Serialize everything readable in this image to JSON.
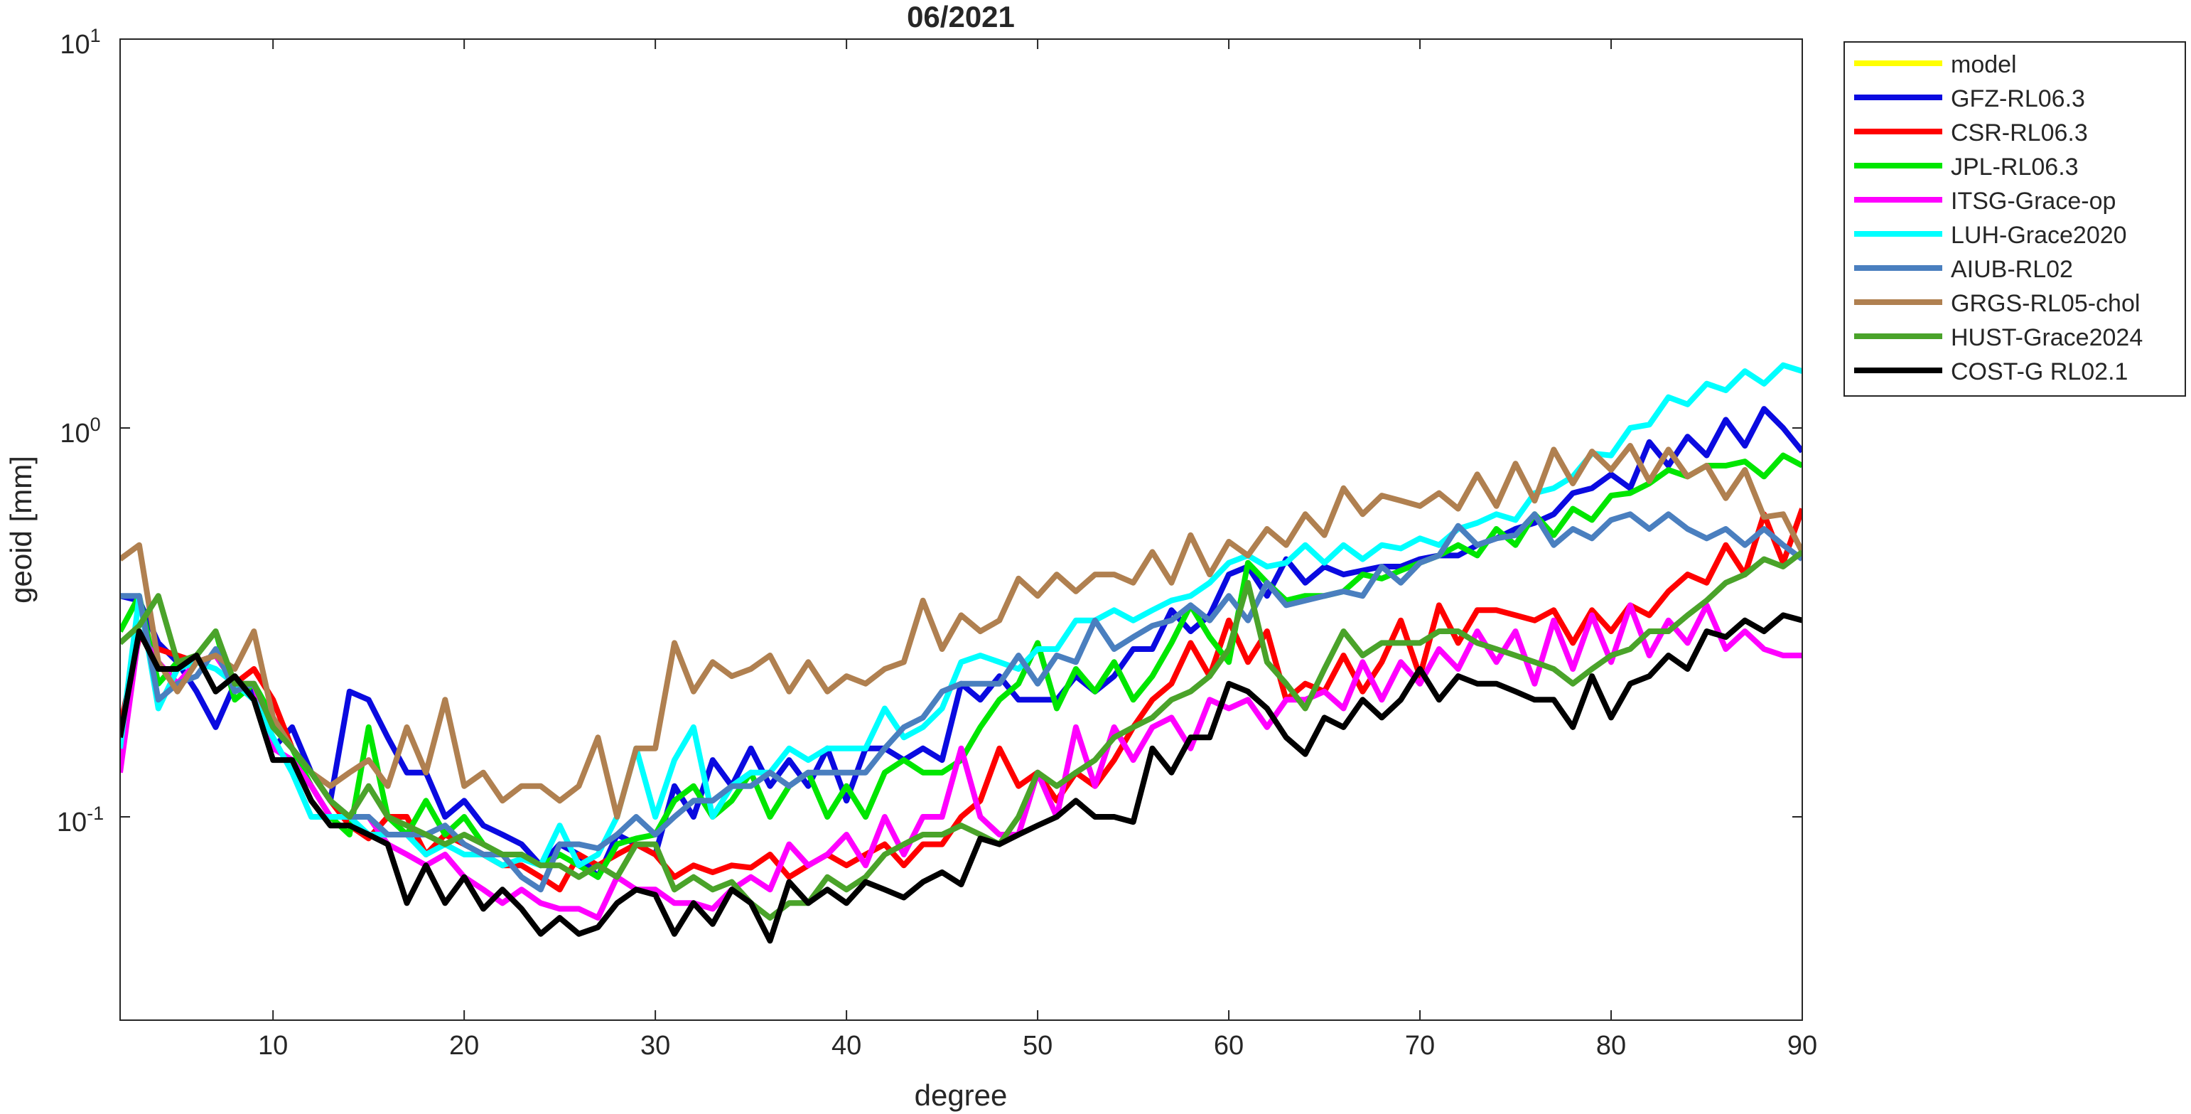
{
  "chart_data": {
    "type": "line",
    "title": "06/2021",
    "xlabel": "degree",
    "ylabel": "geoid [mm]",
    "log_y": true,
    "legend_position": "northeastoutside",
    "xlim": [
      2,
      90
    ],
    "xticks": [
      10,
      20,
      30,
      40,
      50,
      60,
      70,
      80,
      90
    ],
    "ylim": [
      0.03,
      10
    ],
    "yticks": [
      {
        "value": 0.1,
        "label": "10^{-1}"
      },
      {
        "value": 1,
        "label": "10^{0}"
      },
      {
        "value": 10,
        "label": "10^{1}"
      }
    ],
    "x": [
      2,
      3,
      4,
      5,
      6,
      7,
      8,
      9,
      10,
      11,
      12,
      13,
      14,
      15,
      16,
      17,
      18,
      19,
      20,
      21,
      22,
      23,
      24,
      25,
      26,
      27,
      28,
      29,
      30,
      31,
      32,
      33,
      34,
      35,
      36,
      37,
      38,
      39,
      40,
      41,
      42,
      43,
      44,
      45,
      46,
      47,
      48,
      49,
      50,
      51,
      52,
      53,
      54,
      55,
      56,
      57,
      58,
      59,
      60,
      61,
      62,
      63,
      64,
      65,
      66,
      67,
      68,
      69,
      70,
      71,
      72,
      73,
      74,
      75,
      76,
      77,
      78,
      79,
      80,
      81,
      82,
      83,
      84,
      85,
      86,
      87,
      88,
      89,
      90
    ],
    "series": [
      {
        "name": "model",
        "color": "#ffff00",
        "values": [
          null,
          null,
          null,
          null,
          null,
          null,
          null,
          null,
          null,
          null,
          null,
          null,
          null,
          null,
          null,
          null,
          null,
          null,
          null,
          null,
          null,
          null,
          null,
          null,
          null,
          null,
          null,
          null,
          null,
          null,
          null,
          null,
          null,
          null,
          null,
          null,
          null,
          null,
          null,
          null,
          null,
          null,
          null,
          null,
          null,
          null,
          null,
          null,
          null,
          null,
          null,
          null,
          null,
          null,
          null,
          null,
          null,
          null,
          null,
          null,
          null,
          null,
          null,
          null,
          null,
          null,
          null,
          null,
          null,
          null,
          null,
          null,
          null,
          null,
          null,
          null,
          null,
          null,
          null,
          null,
          null,
          null,
          null,
          null,
          null,
          null,
          null,
          null,
          null
        ]
      },
      {
        "name": "GFZ-RL06.3",
        "color": "#0a0ae0",
        "values": [
          0.37,
          0.36,
          0.28,
          0.25,
          0.21,
          0.17,
          0.22,
          0.21,
          0.15,
          0.17,
          0.13,
          0.11,
          0.21,
          0.2,
          0.16,
          0.13,
          0.13,
          0.1,
          0.11,
          0.095,
          0.09,
          0.085,
          0.075,
          0.085,
          0.08,
          0.07,
          0.09,
          0.085,
          0.08,
          0.12,
          0.1,
          0.14,
          0.12,
          0.15,
          0.12,
          0.14,
          0.12,
          0.15,
          0.11,
          0.15,
          0.15,
          0.14,
          0.15,
          0.14,
          0.22,
          0.2,
          0.23,
          0.2,
          0.2,
          0.2,
          0.23,
          0.21,
          0.23,
          0.27,
          0.27,
          0.34,
          0.3,
          0.33,
          0.42,
          0.44,
          0.37,
          0.46,
          0.4,
          0.44,
          0.42,
          0.43,
          0.44,
          0.44,
          0.46,
          0.47,
          0.47,
          0.5,
          0.52,
          0.55,
          0.57,
          0.6,
          0.68,
          0.7,
          0.76,
          0.7,
          0.92,
          0.8,
          0.95,
          0.85,
          1.05,
          0.9,
          1.12,
          1.0,
          0.87
        ]
      },
      {
        "name": "CSR-RL06.3",
        "color": "#ff0000",
        "values": [
          0.17,
          0.29,
          0.27,
          0.26,
          0.25,
          0.26,
          0.22,
          0.24,
          0.2,
          0.15,
          0.13,
          0.11,
          0.095,
          0.088,
          0.1,
          0.1,
          0.08,
          0.09,
          0.085,
          0.08,
          0.075,
          0.075,
          0.07,
          0.065,
          0.08,
          0.075,
          0.08,
          0.085,
          0.08,
          0.07,
          0.075,
          0.072,
          0.075,
          0.074,
          0.08,
          0.07,
          0.075,
          0.08,
          0.075,
          0.08,
          0.085,
          0.075,
          0.085,
          0.085,
          0.1,
          0.11,
          0.15,
          0.12,
          0.13,
          0.11,
          0.13,
          0.12,
          0.14,
          0.17,
          0.2,
          0.22,
          0.28,
          0.23,
          0.32,
          0.25,
          0.3,
          0.2,
          0.22,
          0.21,
          0.26,
          0.21,
          0.25,
          0.32,
          0.23,
          0.35,
          0.28,
          0.34,
          0.34,
          0.33,
          0.32,
          0.34,
          0.28,
          0.34,
          0.3,
          0.35,
          0.33,
          0.38,
          0.42,
          0.4,
          0.5,
          0.42,
          0.6,
          0.45,
          0.62
        ]
      },
      {
        "name": "JPL-RL06.3",
        "color": "#00e600",
        "values": [
          0.3,
          0.37,
          0.22,
          0.25,
          0.26,
          0.3,
          0.2,
          0.22,
          0.18,
          0.15,
          0.12,
          0.1,
          0.09,
          0.17,
          0.1,
          0.09,
          0.11,
          0.09,
          0.1,
          0.085,
          0.08,
          0.08,
          0.075,
          0.08,
          0.075,
          0.07,
          0.085,
          0.088,
          0.09,
          0.11,
          0.12,
          0.1,
          0.11,
          0.13,
          0.1,
          0.12,
          0.13,
          0.1,
          0.12,
          0.1,
          0.13,
          0.14,
          0.13,
          0.13,
          0.14,
          0.17,
          0.2,
          0.22,
          0.28,
          0.19,
          0.24,
          0.21,
          0.25,
          0.2,
          0.23,
          0.28,
          0.35,
          0.29,
          0.25,
          0.45,
          0.4,
          0.36,
          0.37,
          0.37,
          0.38,
          0.42,
          0.41,
          0.43,
          0.45,
          0.47,
          0.5,
          0.47,
          0.55,
          0.5,
          0.6,
          0.53,
          0.62,
          0.58,
          0.67,
          0.68,
          0.72,
          0.78,
          0.75,
          0.8,
          0.8,
          0.82,
          0.75,
          0.85,
          0.8
        ]
      },
      {
        "name": "ITSG-Grace-op",
        "color": "#ff00ff",
        "values": [
          0.13,
          0.3,
          0.25,
          0.22,
          0.25,
          0.26,
          0.22,
          0.22,
          0.15,
          0.14,
          0.12,
          0.1,
          0.1,
          0.1,
          0.085,
          0.08,
          0.075,
          0.08,
          0.07,
          0.065,
          0.06,
          0.065,
          0.06,
          0.058,
          0.058,
          0.055,
          0.07,
          0.065,
          0.065,
          0.06,
          0.06,
          0.058,
          0.065,
          0.07,
          0.065,
          0.085,
          0.075,
          0.08,
          0.09,
          0.075,
          0.1,
          0.08,
          0.1,
          0.1,
          0.15,
          0.1,
          0.09,
          0.09,
          0.13,
          0.1,
          0.17,
          0.12,
          0.17,
          0.14,
          0.17,
          0.18,
          0.15,
          0.2,
          0.19,
          0.2,
          0.17,
          0.2,
          0.2,
          0.21,
          0.19,
          0.25,
          0.2,
          0.25,
          0.22,
          0.27,
          0.24,
          0.3,
          0.25,
          0.3,
          0.22,
          0.32,
          0.24,
          0.33,
          0.25,
          0.35,
          0.26,
          0.32,
          0.28,
          0.35,
          0.27,
          0.3,
          0.27,
          0.26,
          0.26
        ]
      },
      {
        "name": "LUH-Grace2020",
        "color": "#00ffff",
        "values": [
          0.15,
          0.37,
          0.19,
          0.24,
          0.25,
          0.24,
          0.22,
          0.2,
          0.16,
          0.13,
          0.1,
          0.1,
          0.1,
          0.09,
          0.09,
          0.09,
          0.08,
          0.085,
          0.08,
          0.08,
          0.075,
          0.078,
          0.075,
          0.095,
          0.075,
          0.08,
          0.1,
          0.15,
          0.1,
          0.14,
          0.17,
          0.1,
          0.12,
          0.13,
          0.13,
          0.15,
          0.14,
          0.15,
          0.15,
          0.15,
          0.19,
          0.16,
          0.17,
          0.19,
          0.25,
          0.26,
          0.25,
          0.24,
          0.27,
          0.27,
          0.32,
          0.32,
          0.34,
          0.32,
          0.34,
          0.36,
          0.37,
          0.4,
          0.45,
          0.47,
          0.44,
          0.45,
          0.5,
          0.45,
          0.5,
          0.46,
          0.5,
          0.49,
          0.52,
          0.5,
          0.55,
          0.57,
          0.6,
          0.58,
          0.68,
          0.7,
          0.75,
          0.86,
          0.85,
          1.0,
          1.02,
          1.2,
          1.15,
          1.3,
          1.25,
          1.4,
          1.3,
          1.45,
          1.4
        ]
      },
      {
        "name": "AIUB-RL02",
        "color": "#4a7fbf",
        "values": [
          0.37,
          0.37,
          0.2,
          0.22,
          0.23,
          0.27,
          0.21,
          0.22,
          0.17,
          0.15,
          0.13,
          0.11,
          0.1,
          0.1,
          0.09,
          0.09,
          0.09,
          0.095,
          0.085,
          0.08,
          0.08,
          0.07,
          0.065,
          0.085,
          0.085,
          0.083,
          0.09,
          0.1,
          0.09,
          0.1,
          0.11,
          0.11,
          0.12,
          0.12,
          0.13,
          0.12,
          0.13,
          0.13,
          0.13,
          0.13,
          0.15,
          0.17,
          0.18,
          0.21,
          0.22,
          0.22,
          0.22,
          0.26,
          0.22,
          0.26,
          0.25,
          0.32,
          0.27,
          0.29,
          0.31,
          0.32,
          0.35,
          0.32,
          0.37,
          0.32,
          0.4,
          0.35,
          0.36,
          0.37,
          0.38,
          0.37,
          0.44,
          0.4,
          0.45,
          0.47,
          0.56,
          0.5,
          0.52,
          0.53,
          0.6,
          0.5,
          0.55,
          0.52,
          0.58,
          0.6,
          0.55,
          0.6,
          0.55,
          0.52,
          0.55,
          0.5,
          0.55,
          0.5,
          0.46
        ]
      },
      {
        "name": "GRGS-RL05-chol",
        "color": "#b08050",
        "values": [
          0.46,
          0.5,
          0.25,
          0.21,
          0.25,
          0.26,
          0.24,
          0.3,
          0.18,
          0.15,
          0.13,
          0.12,
          0.13,
          0.14,
          0.12,
          0.17,
          0.13,
          0.2,
          0.12,
          0.13,
          0.11,
          0.12,
          0.12,
          0.11,
          0.12,
          0.16,
          0.1,
          0.15,
          0.15,
          0.28,
          0.21,
          0.25,
          0.23,
          0.24,
          0.26,
          0.21,
          0.25,
          0.21,
          0.23,
          0.22,
          0.24,
          0.25,
          0.36,
          0.27,
          0.33,
          0.3,
          0.32,
          0.41,
          0.37,
          0.42,
          0.38,
          0.42,
          0.42,
          0.4,
          0.48,
          0.4,
          0.53,
          0.42,
          0.51,
          0.47,
          0.55,
          0.5,
          0.6,
          0.53,
          0.7,
          0.6,
          0.67,
          0.65,
          0.63,
          0.68,
          0.62,
          0.76,
          0.63,
          0.81,
          0.65,
          0.88,
          0.72,
          0.87,
          0.78,
          0.9,
          0.73,
          0.88,
          0.75,
          0.8,
          0.66,
          0.78,
          0.59,
          0.6,
          0.48
        ]
      },
      {
        "name": "HUST-Grace2024",
        "color": "#4aa32a",
        "values": [
          0.28,
          0.31,
          0.37,
          0.25,
          0.26,
          0.3,
          0.22,
          0.22,
          0.17,
          0.15,
          0.13,
          0.11,
          0.1,
          0.12,
          0.1,
          0.095,
          0.09,
          0.085,
          0.09,
          0.085,
          0.08,
          0.08,
          0.075,
          0.075,
          0.07,
          0.075,
          0.07,
          0.085,
          0.085,
          0.065,
          0.07,
          0.065,
          0.068,
          0.06,
          0.055,
          0.06,
          0.06,
          0.07,
          0.065,
          0.07,
          0.08,
          0.085,
          0.09,
          0.09,
          0.095,
          0.09,
          0.085,
          0.1,
          0.13,
          0.12,
          0.13,
          0.14,
          0.16,
          0.17,
          0.18,
          0.2,
          0.21,
          0.23,
          0.27,
          0.4,
          0.25,
          0.22,
          0.19,
          0.24,
          0.3,
          0.26,
          0.28,
          0.28,
          0.28,
          0.3,
          0.3,
          0.28,
          0.27,
          0.26,
          0.25,
          0.24,
          0.22,
          0.24,
          0.26,
          0.27,
          0.3,
          0.3,
          0.33,
          0.36,
          0.4,
          0.42,
          0.46,
          0.44,
          0.48
        ]
      },
      {
        "name": "COST-G RL02.1",
        "color": "#000000",
        "values": [
          0.16,
          0.3,
          0.24,
          0.24,
          0.26,
          0.21,
          0.23,
          0.2,
          0.14,
          0.14,
          0.11,
          0.095,
          0.095,
          0.09,
          0.085,
          0.06,
          0.075,
          0.06,
          0.07,
          0.058,
          0.065,
          0.058,
          0.05,
          0.055,
          0.05,
          0.052,
          0.06,
          0.065,
          0.063,
          0.05,
          0.06,
          0.053,
          0.065,
          0.06,
          0.048,
          0.068,
          0.06,
          0.065,
          0.06,
          0.068,
          0.065,
          0.062,
          0.068,
          0.072,
          0.067,
          0.088,
          0.085,
          0.09,
          0.095,
          0.1,
          0.11,
          0.1,
          0.1,
          0.097,
          0.15,
          0.13,
          0.16,
          0.16,
          0.22,
          0.21,
          0.19,
          0.16,
          0.145,
          0.18,
          0.17,
          0.2,
          0.18,
          0.2,
          0.24,
          0.2,
          0.23,
          0.22,
          0.22,
          0.21,
          0.2,
          0.2,
          0.17,
          0.23,
          0.18,
          0.22,
          0.23,
          0.26,
          0.24,
          0.3,
          0.29,
          0.32,
          0.3,
          0.33,
          0.32
        ]
      }
    ]
  }
}
